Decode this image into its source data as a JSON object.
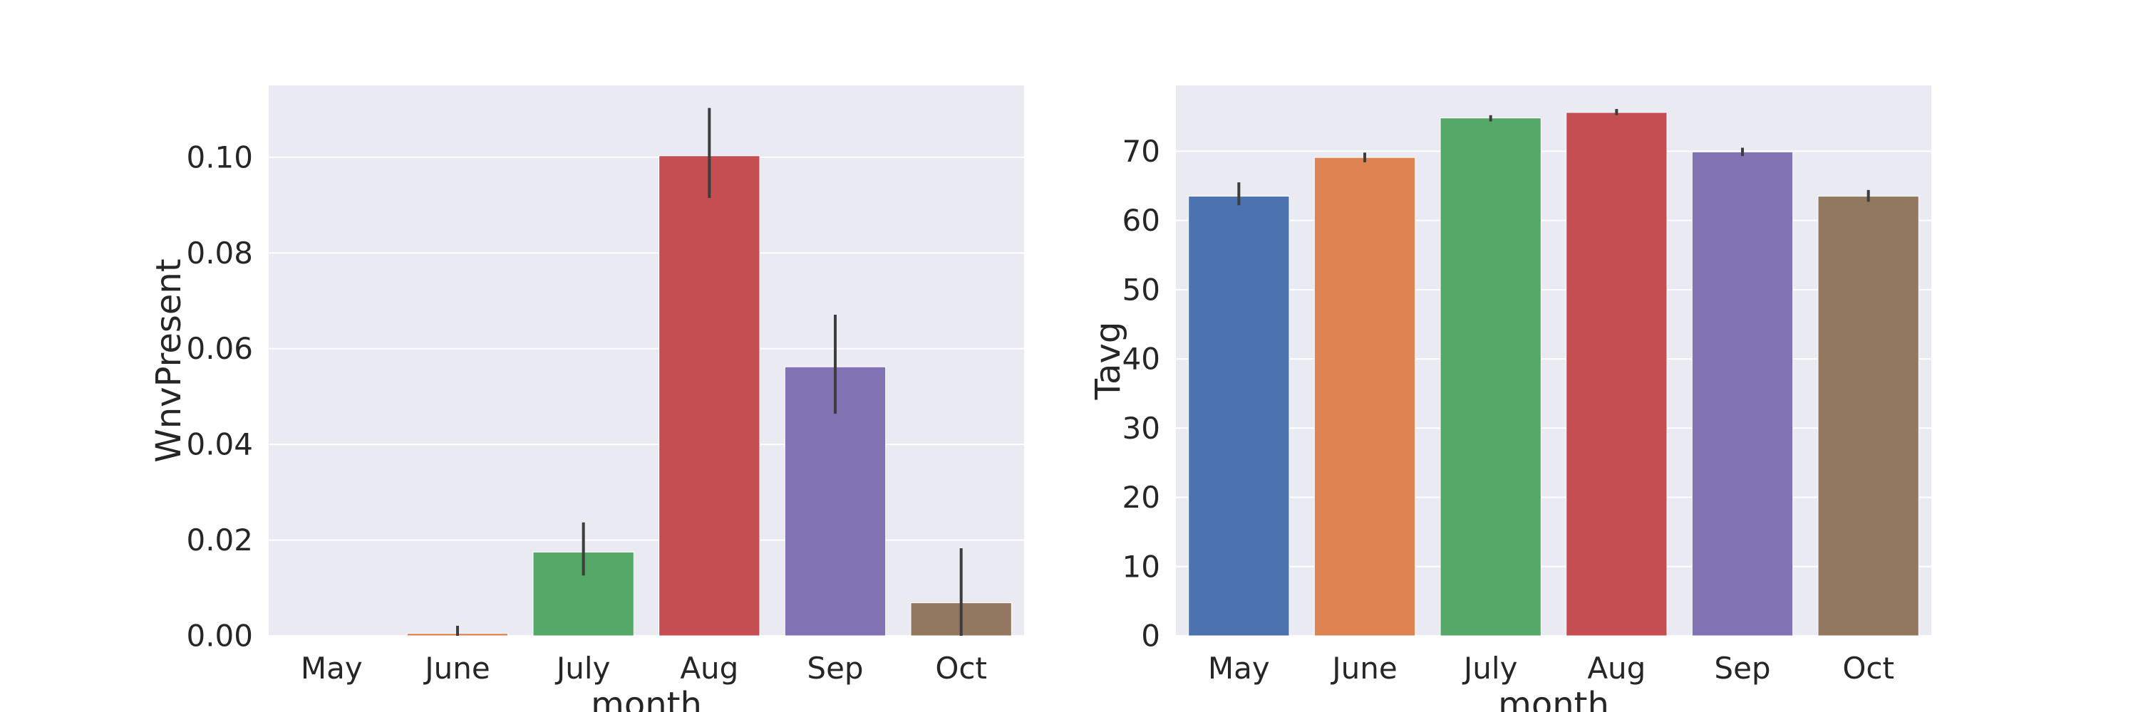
{
  "chart_data": [
    {
      "type": "bar",
      "categories": [
        "May",
        "June",
        "July",
        "Aug",
        "Sep",
        "Oct"
      ],
      "values": [
        0.0,
        0.0005,
        0.0175,
        0.1003,
        0.0562,
        0.0069
      ],
      "error_bars": [
        [
          0.0,
          0.0
        ],
        [
          0.0,
          0.0021
        ],
        [
          0.0126,
          0.0237
        ],
        [
          0.0915,
          0.1103
        ],
        [
          0.0464,
          0.0671
        ],
        [
          0.0,
          0.0183
        ]
      ],
      "colors": [
        "#4C72B0",
        "#DD8452",
        "#55A868",
        "#C44E52",
        "#8172B3",
        "#937860"
      ],
      "xlabel": "month",
      "ylabel": "WnvPresent",
      "ylim": [
        0,
        0.115
      ],
      "yticks": [
        "0.00",
        "0.02",
        "0.04",
        "0.06",
        "0.08",
        "0.10"
      ],
      "grid": true
    },
    {
      "type": "bar",
      "categories": [
        "May",
        "June",
        "July",
        "Aug",
        "Sep",
        "Oct"
      ],
      "values": [
        63.5,
        69.1,
        74.8,
        75.6,
        69.9,
        63.5
      ],
      "error_bars": [
        [
          62.2,
          65.5
        ],
        [
          68.4,
          69.8
        ],
        [
          74.3,
          75.2
        ],
        [
          75.2,
          76.1
        ],
        [
          69.3,
          70.5
        ],
        [
          62.7,
          64.4
        ]
      ],
      "colors": [
        "#4C72B0",
        "#DD8452",
        "#55A868",
        "#C44E52",
        "#8172B3",
        "#937860"
      ],
      "xlabel": "month",
      "ylabel": "Tavg",
      "ylim": [
        0,
        79.5
      ],
      "yticks": [
        "0",
        "10",
        "20",
        "30",
        "40",
        "50",
        "60",
        "70"
      ],
      "grid": true
    }
  ]
}
